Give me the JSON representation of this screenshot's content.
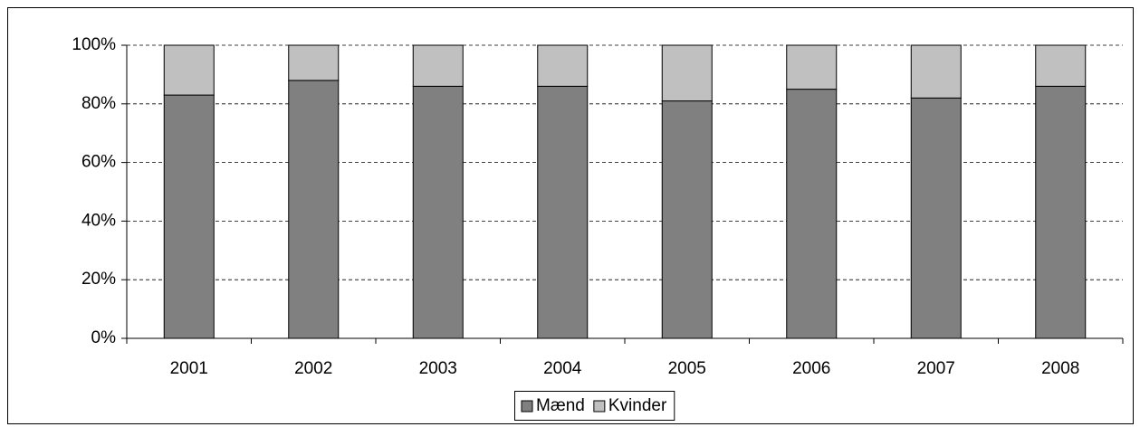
{
  "chart_data": {
    "type": "stacked_bar",
    "categories": [
      "2001",
      "2002",
      "2003",
      "2004",
      "2005",
      "2006",
      "2007",
      "2008"
    ],
    "series": [
      {
        "name": "Mænd",
        "color": "#808080",
        "values": [
          83,
          88,
          86,
          86,
          81,
          85,
          82,
          86
        ]
      },
      {
        "name": "Kvinder",
        "color": "#c0c0c0",
        "values": [
          17,
          12,
          14,
          14,
          19,
          15,
          18,
          14
        ]
      }
    ],
    "ylim": [
      0,
      100
    ],
    "yticks": [
      {
        "value": 0,
        "label": "0%"
      },
      {
        "value": 20,
        "label": "20%"
      },
      {
        "value": 40,
        "label": "40%"
      },
      {
        "value": 60,
        "label": "60%"
      },
      {
        "value": 80,
        "label": "80%"
      },
      {
        "value": 100,
        "label": "100%"
      }
    ],
    "grid": true,
    "legend": "bottom"
  }
}
